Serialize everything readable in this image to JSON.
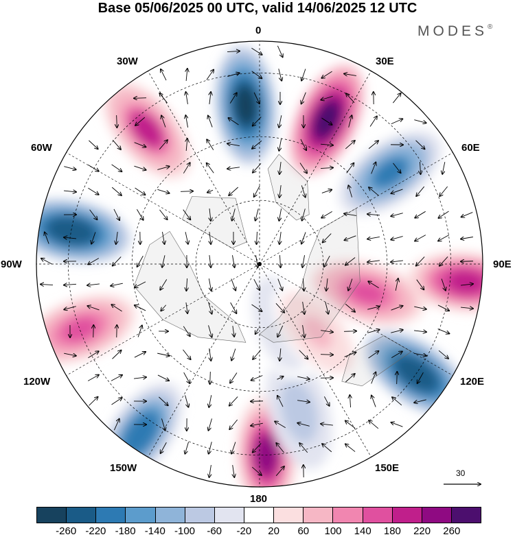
{
  "title": "Base 05/06/2025 00 UTC, valid 14/06/2025 12 UTC",
  "brand": "MODES",
  "brand_mark": "®",
  "longitude_labels": {
    "l0": "0",
    "l30e": "30E",
    "l60e": "60E",
    "l90e": "90E",
    "l120e": "120E",
    "l150e": "150E",
    "l180": "180",
    "l150w": "150W",
    "l120w": "120W",
    "l90w": "90W",
    "l60w": "60W",
    "l30w": "30W"
  },
  "reference_vector": "30",
  "colorbar": {
    "colors": [
      "#17425e",
      "#1a5b87",
      "#2d7ab3",
      "#5c9ccc",
      "#8fb4d9",
      "#bcc9e3",
      "#e2e4f0",
      "#ffffff",
      "#fbdfe0",
      "#f6b7c5",
      "#f186b0",
      "#e0509f",
      "#c01f8b",
      "#8f0a82",
      "#4c0f6e"
    ],
    "tick_labels": [
      "-260",
      "-220",
      "-180",
      "-140",
      "-100",
      "-60",
      "-20",
      "20",
      "60",
      "100",
      "140",
      "180",
      "220",
      "260"
    ]
  },
  "anomaly_centers": [
    {
      "lon": -5,
      "lat": 40,
      "value": -280,
      "sign": "negative"
    },
    {
      "lon": 25,
      "lat": 40,
      "value": 260,
      "sign": "positive"
    },
    {
      "lon": -40,
      "lat": 35,
      "value": 180,
      "sign": "positive"
    },
    {
      "lon": 55,
      "lat": 40,
      "value": -200,
      "sign": "negative"
    },
    {
      "lon": -80,
      "lat": 30,
      "value": -260,
      "sign": "negative"
    },
    {
      "lon": 95,
      "lat": 25,
      "value": 200,
      "sign": "positive"
    },
    {
      "lon": 105,
      "lat": 55,
      "value": 160,
      "sign": "positive"
    },
    {
      "lon": 125,
      "lat": 30,
      "value": -260,
      "sign": "negative"
    },
    {
      "lon": -110,
      "lat": 30,
      "value": 160,
      "sign": "positive"
    },
    {
      "lon": -145,
      "lat": 25,
      "value": -220,
      "sign": "negative"
    },
    {
      "lon": 178,
      "lat": 30,
      "value": 220,
      "sign": "positive"
    },
    {
      "lon": 165,
      "lat": 42,
      "value": -100,
      "sign": "negative"
    },
    {
      "lon": 160,
      "lat": 70,
      "value": -60,
      "sign": "negative"
    },
    {
      "lon": 140,
      "lat": 62,
      "value": 60,
      "sign": "positive"
    }
  ]
}
